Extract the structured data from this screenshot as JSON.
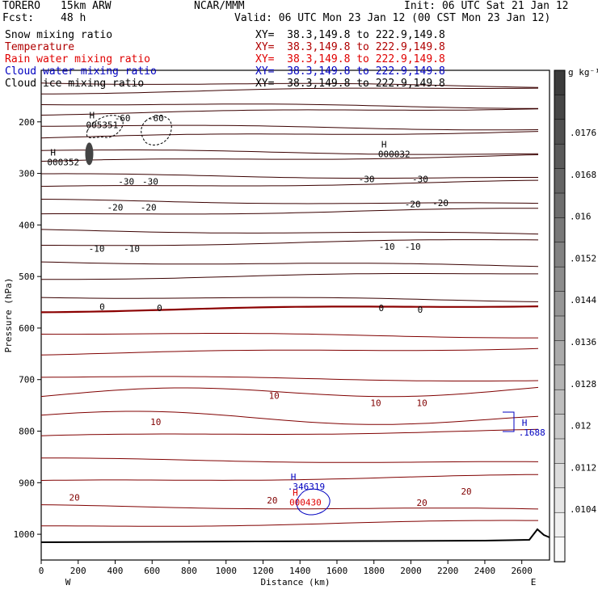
{
  "header": {
    "model": "TORERO",
    "resolution": "15km ARW",
    "center": "NCAR/MMM",
    "init": "Init: 06 UTC Sat 21 Jan 12",
    "fcst_label": "Fcst:",
    "fcst_value": "48 h",
    "valid": "Valid: 06 UTC Mon 23 Jan 12 (00 CST Mon 23 Jan 12)"
  },
  "legend": [
    {
      "name": "Snow mixing ratio",
      "xy": "XY=  38.3,149.8 to 222.9,149.8",
      "color": "#000000",
      "xy_color": "#000000"
    },
    {
      "name": "Temperature",
      "xy": "XY=  38.3,149.8 to 222.9,149.8",
      "color": "#b00000",
      "xy_color": "#b00000"
    },
    {
      "name": "Rain water mixing ratio",
      "xy": "XY=  38.3,149.8 to 222.9,149.8",
      "color": "#e00000",
      "xy_color": "#e00000"
    },
    {
      "name": "Cloud water mixing ratio",
      "xy": "XY=  38.3,149.8 to 222.9,149.8",
      "color": "#0000c0",
      "xy_color": "#0000c0"
    },
    {
      "name": "Cloud ice mixing ratio",
      "xy": "XY=  38.3,149.8 to 222.9,149.8",
      "color": "#000000",
      "xy_color": "#000000"
    }
  ],
  "chart_data": {
    "type": "cross-section",
    "xlabel": "Distance (km)",
    "ylabel": "Pressure (hPa)",
    "xlim": [
      0,
      2750
    ],
    "ylim": [
      1050,
      100
    ],
    "x_ticks": [
      0,
      200,
      400,
      600,
      800,
      1000,
      1200,
      1400,
      1600,
      1800,
      2000,
      2200,
      2400,
      2600
    ],
    "y_ticks": [
      200,
      300,
      400,
      500,
      600,
      700,
      800,
      900,
      1000
    ],
    "west_label": "W",
    "east_label": "E",
    "colorbar": {
      "units": "g kg⁻¹",
      "ticks": [
        ".0176",
        ".0168",
        ".016",
        ".0152",
        ".0144",
        ".0136",
        ".0128",
        ".012",
        ".0112",
        ".0104"
      ]
    },
    "temperature_labels": [
      {
        "text": "-60",
        "x": 440,
        "p": 199
      },
      {
        "text": "-60",
        "x": 620,
        "p": 199
      },
      {
        "text": "-30",
        "x": 460,
        "p": 322
      },
      {
        "text": "-30",
        "x": 590,
        "p": 322
      },
      {
        "text": "-30",
        "x": 1760,
        "p": 317
      },
      {
        "text": "-30",
        "x": 2050,
        "p": 317
      },
      {
        "text": "-20",
        "x": 400,
        "p": 372
      },
      {
        "text": "-20",
        "x": 580,
        "p": 372
      },
      {
        "text": "-20",
        "x": 2010,
        "p": 366
      },
      {
        "text": "-20",
        "x": 2160,
        "p": 363
      },
      {
        "text": "-10",
        "x": 300,
        "p": 452
      },
      {
        "text": "-10",
        "x": 490,
        "p": 452
      },
      {
        "text": "-10",
        "x": 1870,
        "p": 448
      },
      {
        "text": "-10",
        "x": 2010,
        "p": 448
      },
      {
        "text": "0",
        "x": 330,
        "p": 565
      },
      {
        "text": "0",
        "x": 640,
        "p": 567
      },
      {
        "text": "0",
        "x": 1840,
        "p": 567
      },
      {
        "text": "0",
        "x": 2050,
        "p": 570
      },
      {
        "text": "10",
        "x": 1260,
        "p": 737
      },
      {
        "text": "10",
        "x": 1810,
        "p": 751
      },
      {
        "text": "10",
        "x": 2060,
        "p": 751
      },
      {
        "text": "10",
        "x": 620,
        "p": 788
      },
      {
        "text": "20",
        "x": 180,
        "p": 935
      },
      {
        "text": "20",
        "x": 1250,
        "p": 940
      },
      {
        "text": "20",
        "x": 2060,
        "p": 945
      },
      {
        "text": "20",
        "x": 2300,
        "p": 923
      }
    ],
    "max_labels": [
      {
        "text": "H",
        "value": "005351",
        "x": 260,
        "p": 193,
        "color": "#000000"
      },
      {
        "text": "H",
        "value": "000352",
        "x": 50,
        "p": 265,
        "color": "#000000"
      },
      {
        "text": "H",
        "value": "000032",
        "x": 1840,
        "p": 250,
        "color": "#000000"
      },
      {
        "text": "H",
        "value": ".1688",
        "x": 2600,
        "p": 790,
        "color": "#0000c0"
      },
      {
        "text": "H",
        "value": ".346319",
        "x": 1350,
        "p": 895,
        "color": "#0000c0"
      },
      {
        "text": "H",
        "value": "000430",
        "x": 1360,
        "p": 925,
        "color": "#e00000"
      }
    ]
  }
}
